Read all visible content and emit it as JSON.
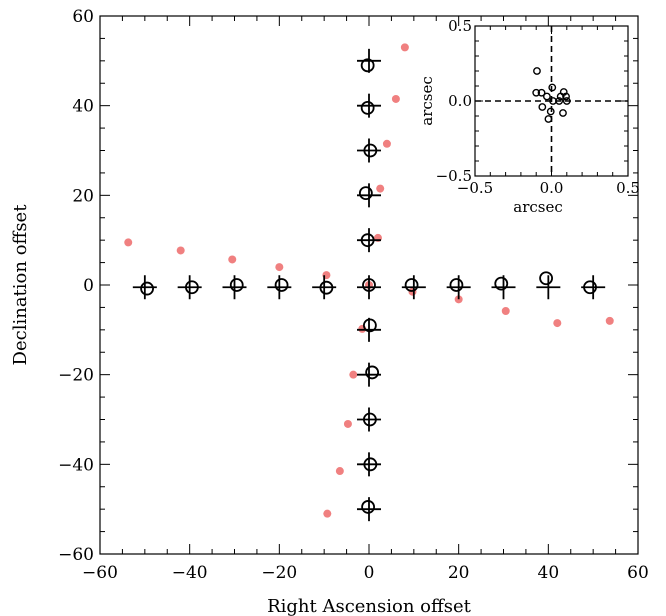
{
  "chart_data": [
    {
      "type": "scatter",
      "xlabel": "Right Ascension offset",
      "ylabel": "Declination offset",
      "xlim": [
        -60,
        60
      ],
      "ylim": [
        -60,
        60
      ],
      "xticks": [
        -60,
        -40,
        -20,
        0,
        20,
        40,
        60
      ],
      "yticks": [
        -60,
        -40,
        -20,
        0,
        20,
        40,
        60
      ],
      "series": [
        {
          "marker": "plus",
          "color": "#000000",
          "points": [
            [
              -50,
              -0.5
            ],
            [
              -40,
              -0.5
            ],
            [
              -30,
              -0.5
            ],
            [
              -20,
              -0.5
            ],
            [
              -10,
              -0.5
            ],
            [
              0,
              -0.5
            ],
            [
              10,
              -0.5
            ],
            [
              20,
              -0.5
            ],
            [
              30,
              -0.5
            ],
            [
              40,
              -0.5
            ],
            [
              50,
              -0.5
            ],
            [
              0,
              50
            ],
            [
              0,
              40
            ],
            [
              0,
              30
            ],
            [
              0,
              20
            ],
            [
              0,
              10
            ],
            [
              0,
              -10
            ],
            [
              0,
              -20
            ],
            [
              0,
              -30
            ],
            [
              0,
              -40
            ],
            [
              0,
              -50
            ]
          ]
        },
        {
          "marker": "open-circle",
          "color": "#000000",
          "points": [
            [
              -49.5,
              -0.8
            ],
            [
              -39.5,
              -0.5
            ],
            [
              -29.5,
              0
            ],
            [
              -19.5,
              0
            ],
            [
              -9.5,
              -0.6
            ],
            [
              0,
              0
            ],
            [
              9.5,
              0
            ],
            [
              19.5,
              0
            ],
            [
              29.5,
              0.3
            ],
            [
              39.5,
              1.5
            ],
            [
              49.3,
              -0.5
            ],
            [
              -0.3,
              49
            ],
            [
              -0.3,
              39.5
            ],
            [
              0.3,
              30
            ],
            [
              -0.7,
              20.5
            ],
            [
              -0.3,
              10
            ],
            [
              0.2,
              -9
            ],
            [
              0.7,
              -19.5
            ],
            [
              0.2,
              -30
            ],
            [
              0.3,
              -40
            ],
            [
              -0.2,
              -49.5
            ]
          ]
        },
        {
          "marker": "filled-circle",
          "color": "#f08080",
          "points": [
            [
              -53.7,
              9.5
            ],
            [
              -42,
              7.7
            ],
            [
              -30.5,
              5.7
            ],
            [
              -20,
              4
            ],
            [
              -9.5,
              2.2
            ],
            [
              0,
              0
            ],
            [
              9.7,
              -1.5
            ],
            [
              20,
              -3.2
            ],
            [
              30.5,
              -5.8
            ],
            [
              42,
              -8.5
            ],
            [
              53.7,
              -8
            ],
            [
              8,
              53
            ],
            [
              6,
              41.5
            ],
            [
              4,
              31.5
            ],
            [
              2.5,
              21.5
            ],
            [
              2,
              10.5
            ],
            [
              -1.5,
              -9.8
            ],
            [
              -3.5,
              -20
            ],
            [
              -4.7,
              -31
            ],
            [
              -6.5,
              -41.5
            ],
            [
              -9.3,
              -51
            ]
          ]
        }
      ]
    },
    {
      "type": "scatter",
      "xlabel": "arcsec",
      "ylabel": "arcsec",
      "xlim": [
        -0.5,
        0.5
      ],
      "ylim": [
        -0.5,
        0.5
      ],
      "xticks": [
        "−0.5",
        "0.0",
        "0.5"
      ],
      "yticks": [
        "−0.5",
        "0.0",
        "0.5"
      ],
      "xtick_values": [
        -0.5,
        0,
        0.5
      ],
      "ytick_values": [
        -0.5,
        0,
        0.5
      ],
      "reference_lines": {
        "x": 0,
        "y": 0,
        "style": "dashed"
      },
      "series": [
        {
          "marker": "open-circle",
          "color": "#000000",
          "points": [
            [
              -0.095,
              0.2
            ],
            [
              -0.1,
              0.055
            ],
            [
              -0.065,
              0.055
            ],
            [
              -0.06,
              -0.04
            ],
            [
              -0.03,
              0.03
            ],
            [
              -0.02,
              -0.12
            ],
            [
              -0.005,
              -0.07
            ],
            [
              0.005,
              0.09
            ],
            [
              0.01,
              0.0
            ],
            [
              0.05,
              0.0
            ],
            [
              0.06,
              0.03
            ],
            [
              0.075,
              -0.08
            ],
            [
              0.08,
              0.06
            ],
            [
              0.1,
              0.0
            ],
            [
              0.095,
              0.03
            ]
          ]
        }
      ]
    }
  ],
  "labels": {
    "main_x": "Right Ascension offset",
    "main_y": "Declination offset",
    "inset_x": "arcsec",
    "inset_y": "arcsec"
  }
}
